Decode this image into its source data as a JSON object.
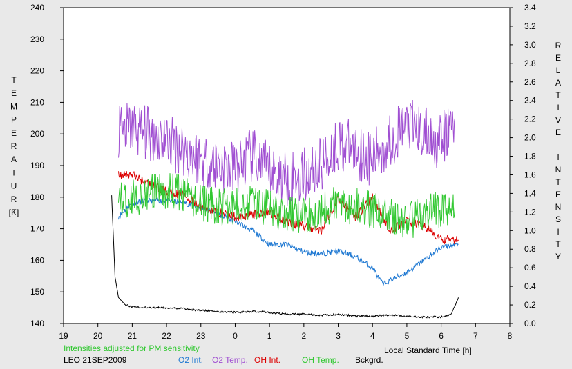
{
  "chart_data": {
    "type": "line",
    "left_axis_title": "TEMPERATURE",
    "left_axis_unit": "[K]",
    "right_axis_title": "RELATIVE INTENSITY",
    "xlabel": "Local Standard Time [h]",
    "xlim": [
      19,
      32
    ],
    "x_tick_labels": [
      "19",
      "20",
      "21",
      "22",
      "23",
      "0",
      "1",
      "2",
      "3",
      "4",
      "5",
      "6",
      "7",
      "8"
    ],
    "ylim_left": [
      140,
      240
    ],
    "y_left_ticks": [
      "140",
      "150",
      "160",
      "170",
      "180",
      "190",
      "200",
      "210",
      "220",
      "230",
      "240"
    ],
    "ylim_right": [
      0.0,
      3.4
    ],
    "y_right_ticks": [
      "0.0",
      "0.2",
      "0.4",
      "0.6",
      "0.8",
      "1.0",
      "1.2",
      "1.4",
      "1.6",
      "1.8",
      "2.0",
      "2.2",
      "2.4",
      "2.6",
      "2.8",
      "3.0",
      "3.2",
      "3.4"
    ],
    "grid": false,
    "note": "Intensities adjusted for PM sensitivity",
    "site_date": "LEO 21SEP2009",
    "series": [
      {
        "name": "O2 Int.",
        "axis": "right",
        "color": "#1e78d2",
        "x": [
          20.6,
          21.0,
          21.5,
          22.0,
          22.5,
          23.0,
          23.5,
          24.0,
          24.5,
          25.0,
          25.5,
          26.0,
          26.5,
          27.0,
          27.5,
          28.0,
          28.3,
          28.6,
          29.0,
          29.5,
          30.0,
          30.5
        ],
        "y": [
          1.15,
          1.3,
          1.32,
          1.32,
          1.3,
          1.25,
          1.18,
          1.1,
          1.0,
          0.85,
          0.85,
          0.77,
          0.75,
          0.78,
          0.72,
          0.6,
          0.42,
          0.48,
          0.55,
          0.68,
          0.82,
          0.85
        ]
      },
      {
        "name": "O2 Temp.",
        "axis": "left",
        "color": "#a04fd2",
        "x": [
          20.6,
          21.0,
          21.5,
          22.0,
          22.5,
          23.0,
          23.5,
          24.0,
          24.5,
          25.0,
          25.5,
          26.0,
          26.5,
          27.0,
          27.5,
          28.0,
          28.5,
          29.0,
          29.5,
          30.0,
          30.4
        ],
        "y": [
          200,
          202,
          200,
          198,
          195,
          192,
          190,
          189,
          193,
          188,
          186,
          187,
          190,
          197,
          195,
          192,
          198,
          203,
          200,
          197,
          205
        ]
      },
      {
        "name": "OH Int.",
        "axis": "right",
        "color": "#dc0000",
        "x": [
          20.6,
          21.0,
          21.5,
          22.0,
          22.5,
          23.0,
          23.5,
          24.0,
          24.5,
          25.0,
          25.5,
          26.0,
          26.5,
          27.0,
          27.5,
          28.0,
          28.5,
          29.0,
          29.5,
          30.0,
          30.5
        ],
        "y": [
          1.6,
          1.6,
          1.5,
          1.42,
          1.38,
          1.25,
          1.2,
          1.15,
          1.17,
          1.2,
          1.1,
          1.05,
          1.0,
          1.35,
          1.15,
          1.35,
          1.0,
          1.1,
          1.05,
          0.9,
          0.9
        ]
      },
      {
        "name": "OH Temp.",
        "axis": "left",
        "color": "#32c832",
        "x": [
          20.6,
          21.0,
          21.5,
          22.0,
          22.5,
          23.0,
          23.5,
          24.0,
          24.5,
          25.0,
          25.5,
          26.0,
          26.5,
          27.0,
          27.5,
          28.0,
          28.5,
          29.0,
          29.5,
          30.0,
          30.4
        ],
        "y": [
          179,
          180,
          181,
          182,
          181,
          178,
          177,
          177,
          179,
          176,
          175,
          174,
          176,
          178,
          177,
          176,
          174,
          172,
          175,
          176,
          177
        ]
      },
      {
        "name": "Bckgrd.",
        "axis": "right",
        "color": "#000000",
        "x": [
          20.4,
          20.5,
          20.6,
          20.8,
          21.0,
          21.5,
          22.0,
          22.5,
          23.0,
          23.5,
          24.0,
          24.5,
          25.0,
          25.5,
          26.0,
          26.5,
          27.0,
          27.5,
          28.0,
          28.5,
          29.0,
          29.5,
          30.0,
          30.3,
          30.5
        ],
        "y": [
          1.38,
          0.5,
          0.28,
          0.2,
          0.18,
          0.17,
          0.17,
          0.16,
          0.14,
          0.13,
          0.12,
          0.13,
          0.12,
          0.1,
          0.1,
          0.09,
          0.1,
          0.08,
          0.08,
          0.09,
          0.08,
          0.07,
          0.07,
          0.1,
          0.28
        ]
      }
    ],
    "legend_placement": "bottom"
  }
}
